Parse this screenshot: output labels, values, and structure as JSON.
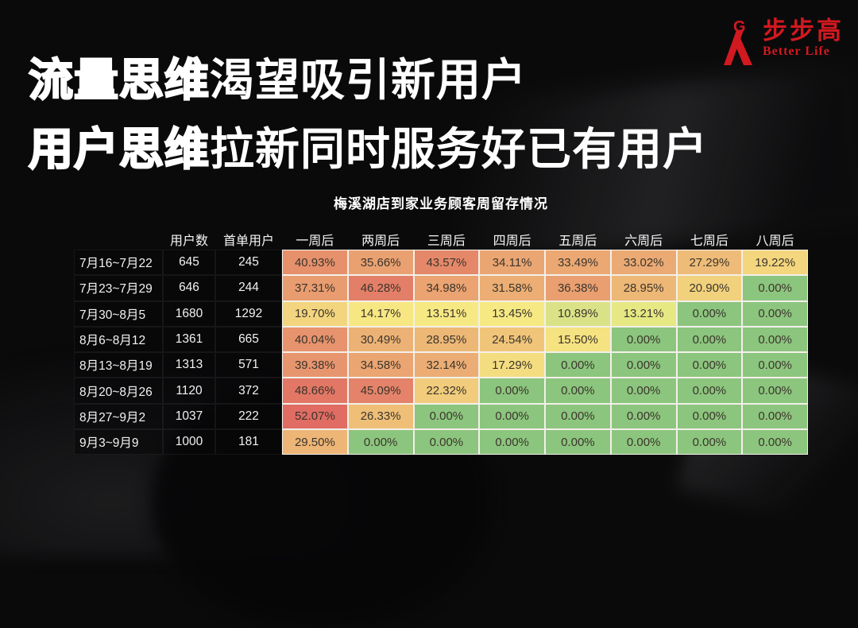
{
  "background_color": "#0a0a0b",
  "headline": {
    "line1_strong": "流量思维",
    "line1_rest": "渴望吸引新用户",
    "line2_strong": "用户思维",
    "line2_rest": "拉新同时服务好已有用户",
    "text_color": "#ffffff"
  },
  "logo": {
    "mark_letter": "G",
    "brand_name": "步步高",
    "tagline": "Better Life",
    "color": "#d1191f"
  },
  "chart_data": {
    "type": "table",
    "title": "梅溪湖店到家业务顾客周留存情况",
    "columns": [
      "用户数",
      "首单用户",
      "一周后",
      "两周后",
      "三周后",
      "四周后",
      "五周后",
      "六周后",
      "七周后",
      "八周后"
    ],
    "value_unit": "%",
    "rows": [
      {
        "period": "7月16~7月22",
        "users": 645,
        "first_order_users": 245,
        "retention": [
          40.93,
          35.66,
          43.57,
          34.11,
          33.49,
          33.02,
          27.29,
          19.22
        ],
        "cell_colors": [
          "#E6906C",
          "#E9A171",
          "#E5886A",
          "#EAA672",
          "#EBA872",
          "#EBAA73",
          "#EEBC78",
          "#F3D67E"
        ]
      },
      {
        "period": "7月23~7月29",
        "users": 646,
        "first_order_users": 244,
        "retention": [
          37.31,
          46.28,
          34.98,
          31.58,
          36.38,
          28.95,
          20.9,
          0.0
        ],
        "cell_colors": [
          "#E89C6F",
          "#E37F68",
          "#EAA371",
          "#ECAE74",
          "#E99F70",
          "#EDB776",
          "#F2D17D",
          "#8CC57E"
        ]
      },
      {
        "period": "7月30~8月5",
        "users": 1680,
        "first_order_users": 1292,
        "retention": [
          19.7,
          14.17,
          13.51,
          13.45,
          10.89,
          13.21,
          0.0,
          0.0
        ],
        "cell_colors": [
          "#F2D57E",
          "#F6E782",
          "#F6E983",
          "#F6E983",
          "#D9E287",
          "#E6E884",
          "#8CC57E",
          "#8CC57E"
        ]
      },
      {
        "period": "8月6~8月12",
        "users": 1361,
        "first_order_users": 665,
        "retention": [
          40.04,
          30.49,
          28.95,
          24.54,
          15.5,
          0.0,
          0.0,
          0.0
        ],
        "cell_colors": [
          "#E7936D",
          "#ECB275",
          "#EDB776",
          "#F0C57A",
          "#F5E281",
          "#8CC57E",
          "#8CC57E",
          "#8CC57E"
        ]
      },
      {
        "period": "8月13~8月19",
        "users": 1313,
        "first_order_users": 571,
        "retention": [
          39.38,
          34.58,
          32.14,
          17.29,
          0.0,
          0.0,
          0.0,
          0.0
        ],
        "cell_colors": [
          "#E7956E",
          "#EAA572",
          "#EBAD74",
          "#F4DD80",
          "#8CC57E",
          "#8CC57E",
          "#8CC57E",
          "#8CC57E"
        ]
      },
      {
        "period": "8月20~8月26",
        "users": 1120,
        "first_order_users": 372,
        "retention": [
          48.66,
          45.09,
          22.32,
          0.0,
          0.0,
          0.0,
          0.0,
          0.0
        ],
        "cell_colors": [
          "#E27766",
          "#E48369",
          "#F1CC7C",
          "#8CC57E",
          "#8CC57E",
          "#8CC57E",
          "#8CC57E",
          "#8CC57E"
        ]
      },
      {
        "period": "8月27~9月2",
        "users": 1037,
        "first_order_users": 222,
        "retention": [
          52.07,
          26.33,
          0.0,
          0.0,
          0.0,
          0.0,
          0.0,
          0.0
        ],
        "cell_colors": [
          "#E06C63",
          "#EFBF78",
          "#8CC57E",
          "#8CC57E",
          "#8CC57E",
          "#8CC57E",
          "#8CC57E",
          "#8CC57E"
        ]
      },
      {
        "period": "9月3~9月9",
        "users": 1000,
        "first_order_users": 181,
        "retention": [
          29.5,
          0.0,
          0.0,
          0.0,
          0.0,
          0.0,
          0.0,
          0.0
        ],
        "cell_colors": [
          "#EDB576",
          "#8CC57E",
          "#8CC57E",
          "#8CC57E",
          "#8CC57E",
          "#8CC57E",
          "#8CC57E",
          "#8CC57E"
        ]
      }
    ],
    "heatmap_scale": {
      "high_color": "#E06C63",
      "mid_color": "#F6E983",
      "low_color": "#8CC57E",
      "low_value": 0,
      "mid_value": 13.48,
      "high_value": 52.07
    }
  }
}
